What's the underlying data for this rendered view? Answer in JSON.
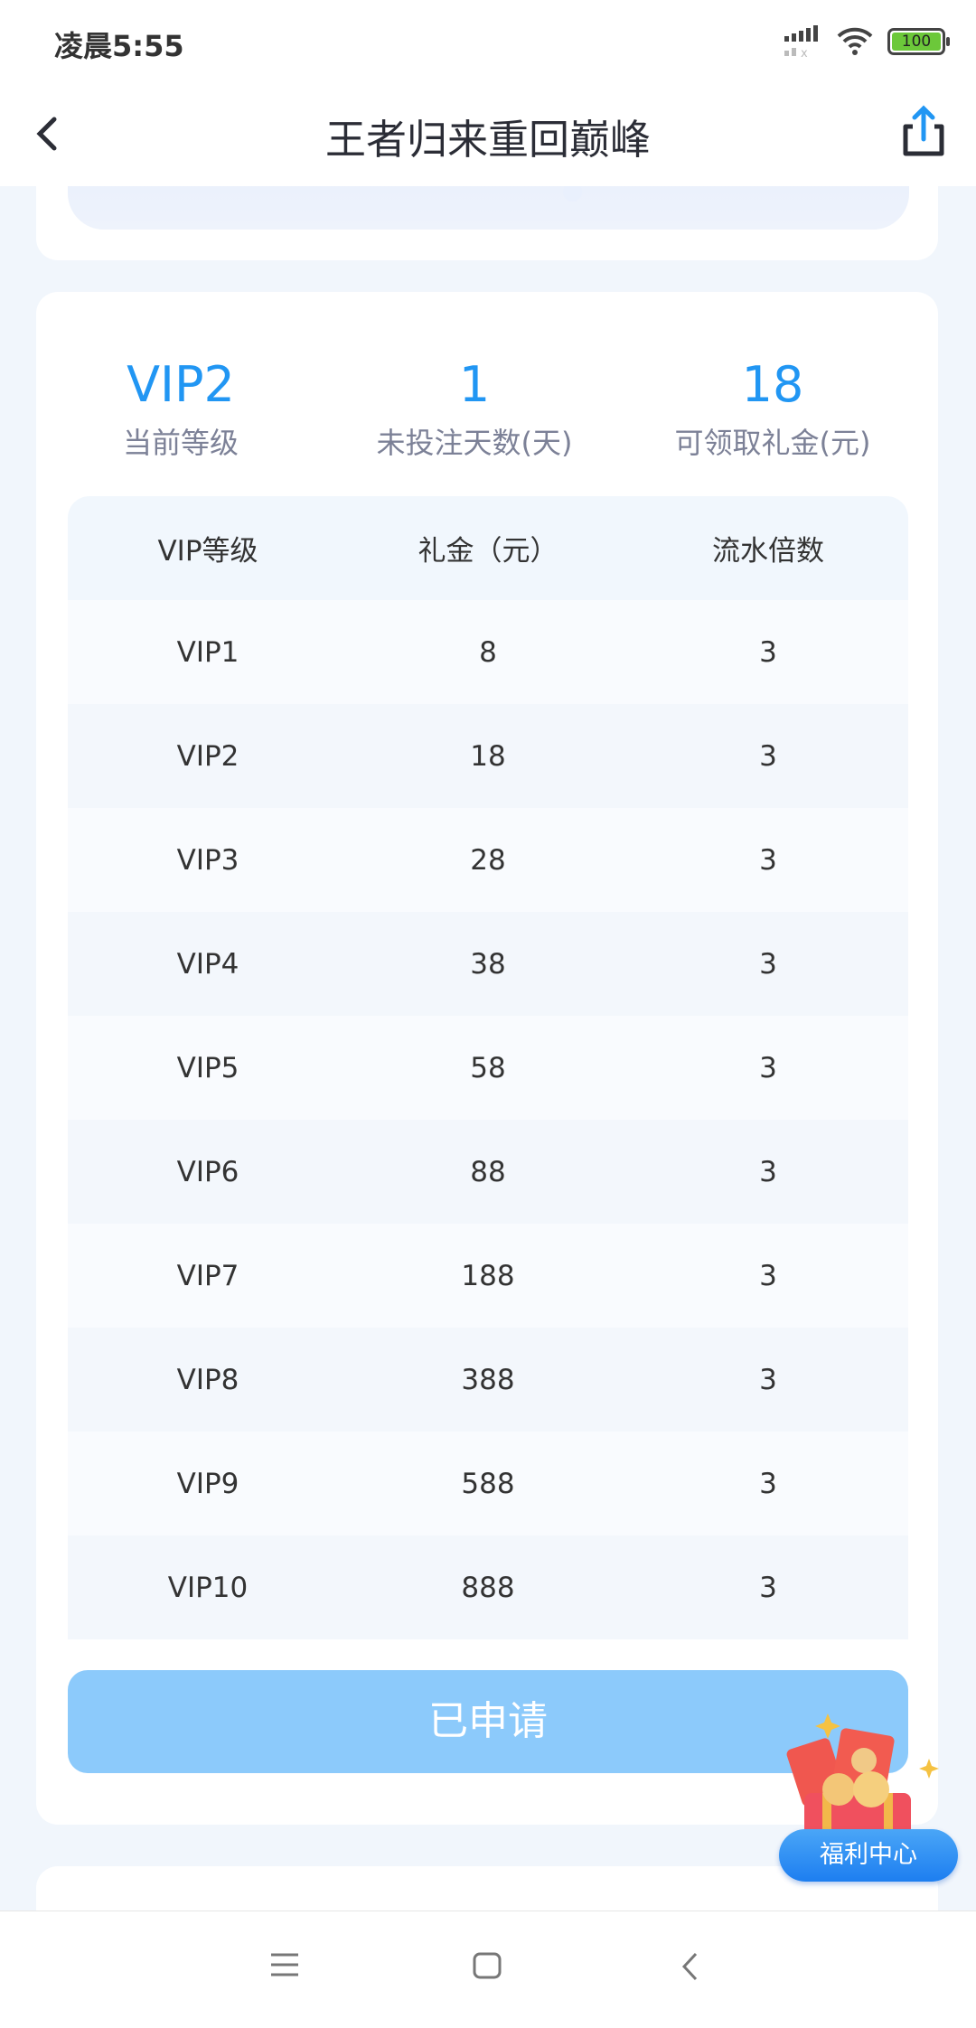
{
  "status_bar": {
    "time": "凌晨5:55",
    "battery": "100"
  },
  "header": {
    "title": "王者归来重回巅峰"
  },
  "stats": [
    {
      "value": "VIP2",
      "label": "当前等级"
    },
    {
      "value": "1",
      "label": "未投注天数(天)"
    },
    {
      "value": "18",
      "label": "可领取礼金(元)"
    }
  ],
  "table": {
    "headers": [
      "VIP等级",
      "礼金（元）",
      "流水倍数"
    ],
    "rows": [
      [
        "VIP1",
        "8",
        "3"
      ],
      [
        "VIP2",
        "18",
        "3"
      ],
      [
        "VIP3",
        "28",
        "3"
      ],
      [
        "VIP4",
        "38",
        "3"
      ],
      [
        "VIP5",
        "58",
        "3"
      ],
      [
        "VIP6",
        "88",
        "3"
      ],
      [
        "VIP7",
        "188",
        "3"
      ],
      [
        "VIP8",
        "388",
        "3"
      ],
      [
        "VIP9",
        "588",
        "3"
      ],
      [
        "VIP10",
        "888",
        "3"
      ]
    ]
  },
  "button": {
    "label": "已申请"
  },
  "welfare": {
    "label": "福利中心"
  },
  "colors": {
    "accent": "#2196f3",
    "button_disabled": "#8ccafb"
  }
}
